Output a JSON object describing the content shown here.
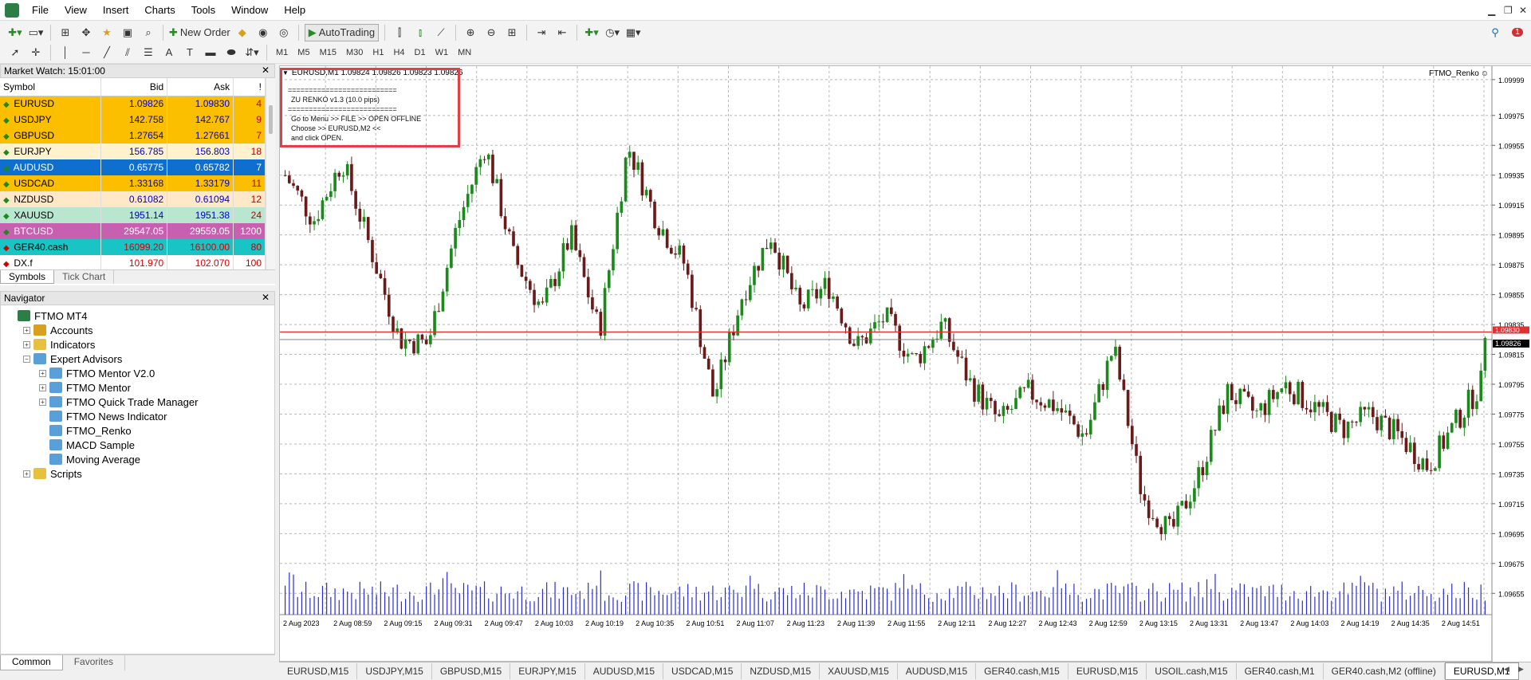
{
  "menu": [
    "File",
    "View",
    "Insert",
    "Charts",
    "Tools",
    "Window",
    "Help"
  ],
  "toolbar": {
    "new_order": "New Order",
    "autotrading": "AutoTrading",
    "notifications_count": "1"
  },
  "timeframes": [
    "M1",
    "M5",
    "M15",
    "M30",
    "H1",
    "H4",
    "D1",
    "W1",
    "MN"
  ],
  "market_watch": {
    "title": "Market Watch: 15:01:00",
    "columns": [
      "Symbol",
      "Bid",
      "Ask",
      "!"
    ],
    "rows": [
      {
        "symbol": "EURUSD",
        "bid": "1.09826",
        "ask": "1.09830",
        "spread": "4",
        "bg": "#fbbf00",
        "fg": "#0000cc",
        "sfg": "#000",
        "dir": "up"
      },
      {
        "symbol": "USDJPY",
        "bid": "142.758",
        "ask": "142.767",
        "spread": "9",
        "bg": "#fbbf00",
        "fg": "#0000cc",
        "sfg": "#000",
        "dir": "up"
      },
      {
        "symbol": "GBPUSD",
        "bid": "1.27654",
        "ask": "1.27661",
        "spread": "7",
        "bg": "#fbbf00",
        "fg": "#0000cc",
        "sfg": "#000",
        "dir": "up"
      },
      {
        "symbol": "EURJPY",
        "bid": "156.785",
        "ask": "156.803",
        "spread": "18",
        "bg": "#fff2cc",
        "fg": "#0000cc",
        "sfg": "#000",
        "dir": "up"
      },
      {
        "symbol": "AUDUSD",
        "bid": "0.65775",
        "ask": "0.65782",
        "spread": "7",
        "bg": "#0f6fcf",
        "fg": "#fff",
        "sfg": "#fff",
        "dir": "up"
      },
      {
        "symbol": "USDCAD",
        "bid": "1.33168",
        "ask": "1.33179",
        "spread": "11",
        "bg": "#fbbf00",
        "fg": "#0000cc",
        "sfg": "#000",
        "dir": "up"
      },
      {
        "symbol": "NZDUSD",
        "bid": "0.61082",
        "ask": "0.61094",
        "spread": "12",
        "bg": "#ffe8c8",
        "fg": "#0000cc",
        "sfg": "#000",
        "dir": "up"
      },
      {
        "symbol": "XAUUSD",
        "bid": "1951.14",
        "ask": "1951.38",
        "spread": "24",
        "bg": "#b8e6cf",
        "fg": "#0000cc",
        "sfg": "#000",
        "dir": "up"
      },
      {
        "symbol": "BTCUSD",
        "bid": "29547.05",
        "ask": "29559.05",
        "spread": "1200",
        "bg": "#c860b0",
        "fg": "#fff",
        "sfg": "#fff",
        "dir": "up"
      },
      {
        "symbol": "GER40.cash",
        "bid": "16099.20",
        "ask": "16100.00",
        "spread": "80",
        "bg": "#18c4c4",
        "fg": "#d80000",
        "sfg": "#000",
        "dir": "down"
      },
      {
        "symbol": "DX.f",
        "bid": "101.970",
        "ask": "102.070",
        "spread": "100",
        "bg": "#fff",
        "fg": "#d80000",
        "sfg": "#000",
        "dir": "down"
      }
    ],
    "tabs": [
      "Symbols",
      "Tick Chart"
    ]
  },
  "navigator": {
    "title": "Navigator",
    "items": [
      {
        "label": "FTMO MT4",
        "level": 0,
        "icon": "terminal-icon",
        "color": "#2d7d46",
        "exp": ""
      },
      {
        "label": "Accounts",
        "level": 1,
        "icon": "accounts-icon",
        "color": "#d9a020",
        "exp": "+"
      },
      {
        "label": "Indicators",
        "level": 1,
        "icon": "indicators-icon",
        "color": "#e8c040",
        "exp": "+"
      },
      {
        "label": "Expert Advisors",
        "level": 1,
        "icon": "expert-advisors-icon",
        "color": "#5aa0d8",
        "exp": "−"
      },
      {
        "label": "FTMO Mentor V2.0",
        "level": 2,
        "icon": "expert-icon",
        "color": "#5aa0d8",
        "exp": "+"
      },
      {
        "label": "FTMO Mentor",
        "level": 2,
        "icon": "expert-icon",
        "color": "#5aa0d8",
        "exp": "+"
      },
      {
        "label": "FTMO Quick Trade Manager",
        "level": 2,
        "icon": "expert-icon",
        "color": "#5aa0d8",
        "exp": "+"
      },
      {
        "label": "FTMO News Indicator",
        "level": 2,
        "icon": "expert-icon",
        "color": "#5aa0d8",
        "exp": ""
      },
      {
        "label": "FTMO_Renko",
        "level": 2,
        "icon": "expert-icon",
        "color": "#5aa0d8",
        "exp": ""
      },
      {
        "label": "MACD Sample",
        "level": 2,
        "icon": "expert-icon",
        "color": "#5aa0d8",
        "exp": ""
      },
      {
        "label": "Moving Average",
        "level": 2,
        "icon": "expert-icon",
        "color": "#5aa0d8",
        "exp": ""
      },
      {
        "label": "Scripts",
        "level": 1,
        "icon": "scripts-icon",
        "color": "#e8c040",
        "exp": "+"
      }
    ],
    "tabs": [
      "Common",
      "Favorites"
    ]
  },
  "chart": {
    "header": "EURUSD,M1  1.09824 1.09826 1.09823 1.09826",
    "ea_label": "FTMO_Renko",
    "info_lines": [
      "==========================",
      "ZU RENKO v1.3 (10.0 pips)",
      "==========================",
      "Go to Menu >> FILE >> OPEN OFFLINE",
      "Choose >> EURUSD,M2 <<",
      "and click OPEN."
    ],
    "price_ticks": [
      "1.09999",
      "1.09975",
      "1.09955",
      "1.09935",
      "1.09915",
      "1.09895",
      "1.09875",
      "1.09855",
      "1.09835",
      "1.09815",
      "1.09795",
      "1.09775",
      "1.09755",
      "1.09735",
      "1.09715",
      "1.09695",
      "1.09675",
      "1.09655"
    ],
    "ask_label": "1.09830",
    "bid_label": "1.09826",
    "time_ticks": [
      "2 Aug 2023",
      "2 Aug 08:59",
      "2 Aug 09:15",
      "2 Aug 09:31",
      "2 Aug 09:47",
      "2 Aug 10:03",
      "2 Aug 10:19",
      "2 Aug 10:35",
      "2 Aug 10:51",
      "2 Aug 11:07",
      "2 Aug 11:23",
      "2 Aug 11:39",
      "2 Aug 11:55",
      "2 Aug 12:11",
      "2 Aug 12:27",
      "2 Aug 12:43",
      "2 Aug 12:59",
      "2 Aug 13:15",
      "2 Aug 13:31",
      "2 Aug 13:47",
      "2 Aug 14:03",
      "2 Aug 14:19",
      "2 Aug 14:35",
      "2 Aug 14:51"
    ],
    "colors": {
      "bull": "#1a8a1a",
      "bear": "#6b1a1a",
      "volume": "#2b2bd4",
      "grid": "#b8b8b8",
      "ask_line": "#e03030",
      "bid_line": "#707070"
    }
  },
  "chart_data": {
    "type": "candlestick",
    "symbol": "EURUSD",
    "timeframe": "M1",
    "ylim": [
      1.09645,
      1.10008
    ],
    "close_anchors": [
      1.09935,
      1.09905,
      1.09945,
      1.09885,
      1.09825,
      1.09822,
      1.099,
      1.09955,
      1.0988,
      1.09845,
      1.09895,
      1.0983,
      1.09955,
      1.09905,
      1.09875,
      1.09785,
      1.09855,
      1.09895,
      1.09845,
      1.09862,
      1.0982,
      1.0984,
      1.0981,
      1.09835,
      1.09795,
      1.0977,
      1.0979,
      1.0978,
      1.0976,
      1.0982,
      1.0972,
      1.09695,
      1.09735,
      1.0979,
      1.09775,
      1.09795,
      1.0978,
      1.09765,
      1.09775,
      1.0976,
      1.0974,
      1.0977,
      1.098
    ],
    "last_close": 1.09826,
    "ask": 1.0983,
    "bid": 1.09826
  },
  "bottom_tabs": [
    "EURUSD,M15",
    "USDJPY,M15",
    "GBPUSD,M15",
    "EURJPY,M15",
    "AUDUSD,M15",
    "USDCAD,M15",
    "NZDUSD,M15",
    "XAUUSD,M15",
    "AUDUSD,M15",
    "GER40.cash,M15",
    "EURUSD,M15",
    "USOIL.cash,M15",
    "GER40.cash,M1",
    "GER40.cash,M2 (offline)",
    "EURUSD,M1"
  ]
}
